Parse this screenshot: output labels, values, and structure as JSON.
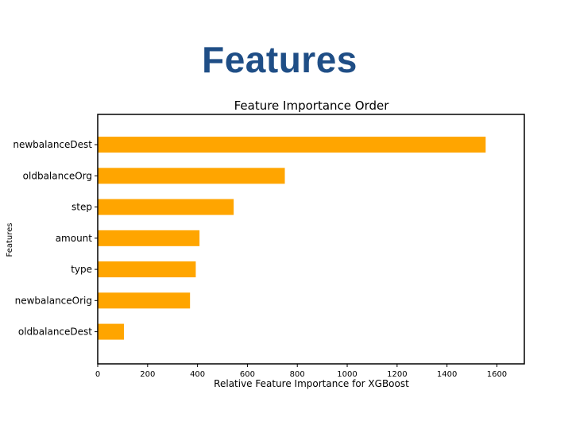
{
  "slide": {
    "title": "Features"
  },
  "chart_data": {
    "type": "bar",
    "orientation": "horizontal",
    "title": "Feature Importance Order",
    "xlabel": "Relative Feature Importance for XGBoost",
    "ylabel": "Features",
    "categories": [
      "newbalanceDest",
      "oldbalanceOrg",
      "step",
      "amount",
      "type",
      "newbalanceOrig",
      "oldbalanceDest"
    ],
    "values": [
      1555,
      750,
      545,
      408,
      393,
      370,
      105
    ],
    "xlim": [
      0,
      1710
    ],
    "xticks": [
      0,
      200,
      400,
      600,
      800,
      1000,
      1200,
      1400,
      1600
    ],
    "bar_color": "#FFA500",
    "grid": false
  }
}
